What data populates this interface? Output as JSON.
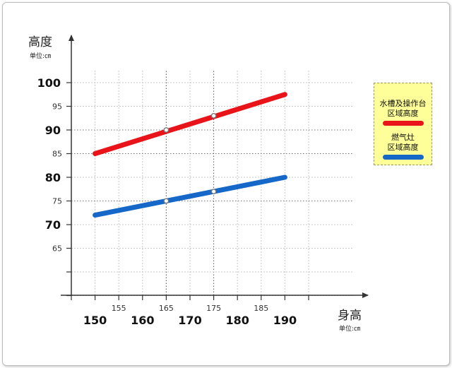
{
  "chart_data": {
    "type": "line",
    "title": "",
    "ylabel": "高度",
    "yunit": "单位:㎝",
    "xlabel": "身高",
    "xunit": "单位:㎝",
    "x_ticks_major": [
      150,
      160,
      170,
      180,
      190
    ],
    "x_ticks_minor": [
      155,
      165,
      175,
      185
    ],
    "y_ticks_major": [
      100,
      90,
      80,
      70
    ],
    "y_ticks_minor": [
      95,
      85,
      75,
      65
    ],
    "xlim": [
      145,
      195
    ],
    "ylim": [
      65,
      100
    ],
    "grid": true,
    "legend_position": "right",
    "series": [
      {
        "name": "水槽及操作台区域高度",
        "legend_lines": [
          "水槽及操作台",
          "区域高度"
        ],
        "color": "#e8141a",
        "x": [
          150,
          190
        ],
        "y": [
          85,
          97.5
        ],
        "markers": [
          {
            "x": 165,
            "y": 90
          },
          {
            "x": 175,
            "y": 93
          }
        ]
      },
      {
        "name": "燃气灶区域高度",
        "legend_lines": [
          "燃气灶",
          "区域高度"
        ],
        "color": "#1567c8",
        "x": [
          150,
          190
        ],
        "y": [
          72,
          80
        ],
        "markers": [
          {
            "x": 165,
            "y": 75
          },
          {
            "x": 175,
            "y": 77
          }
        ]
      }
    ]
  }
}
